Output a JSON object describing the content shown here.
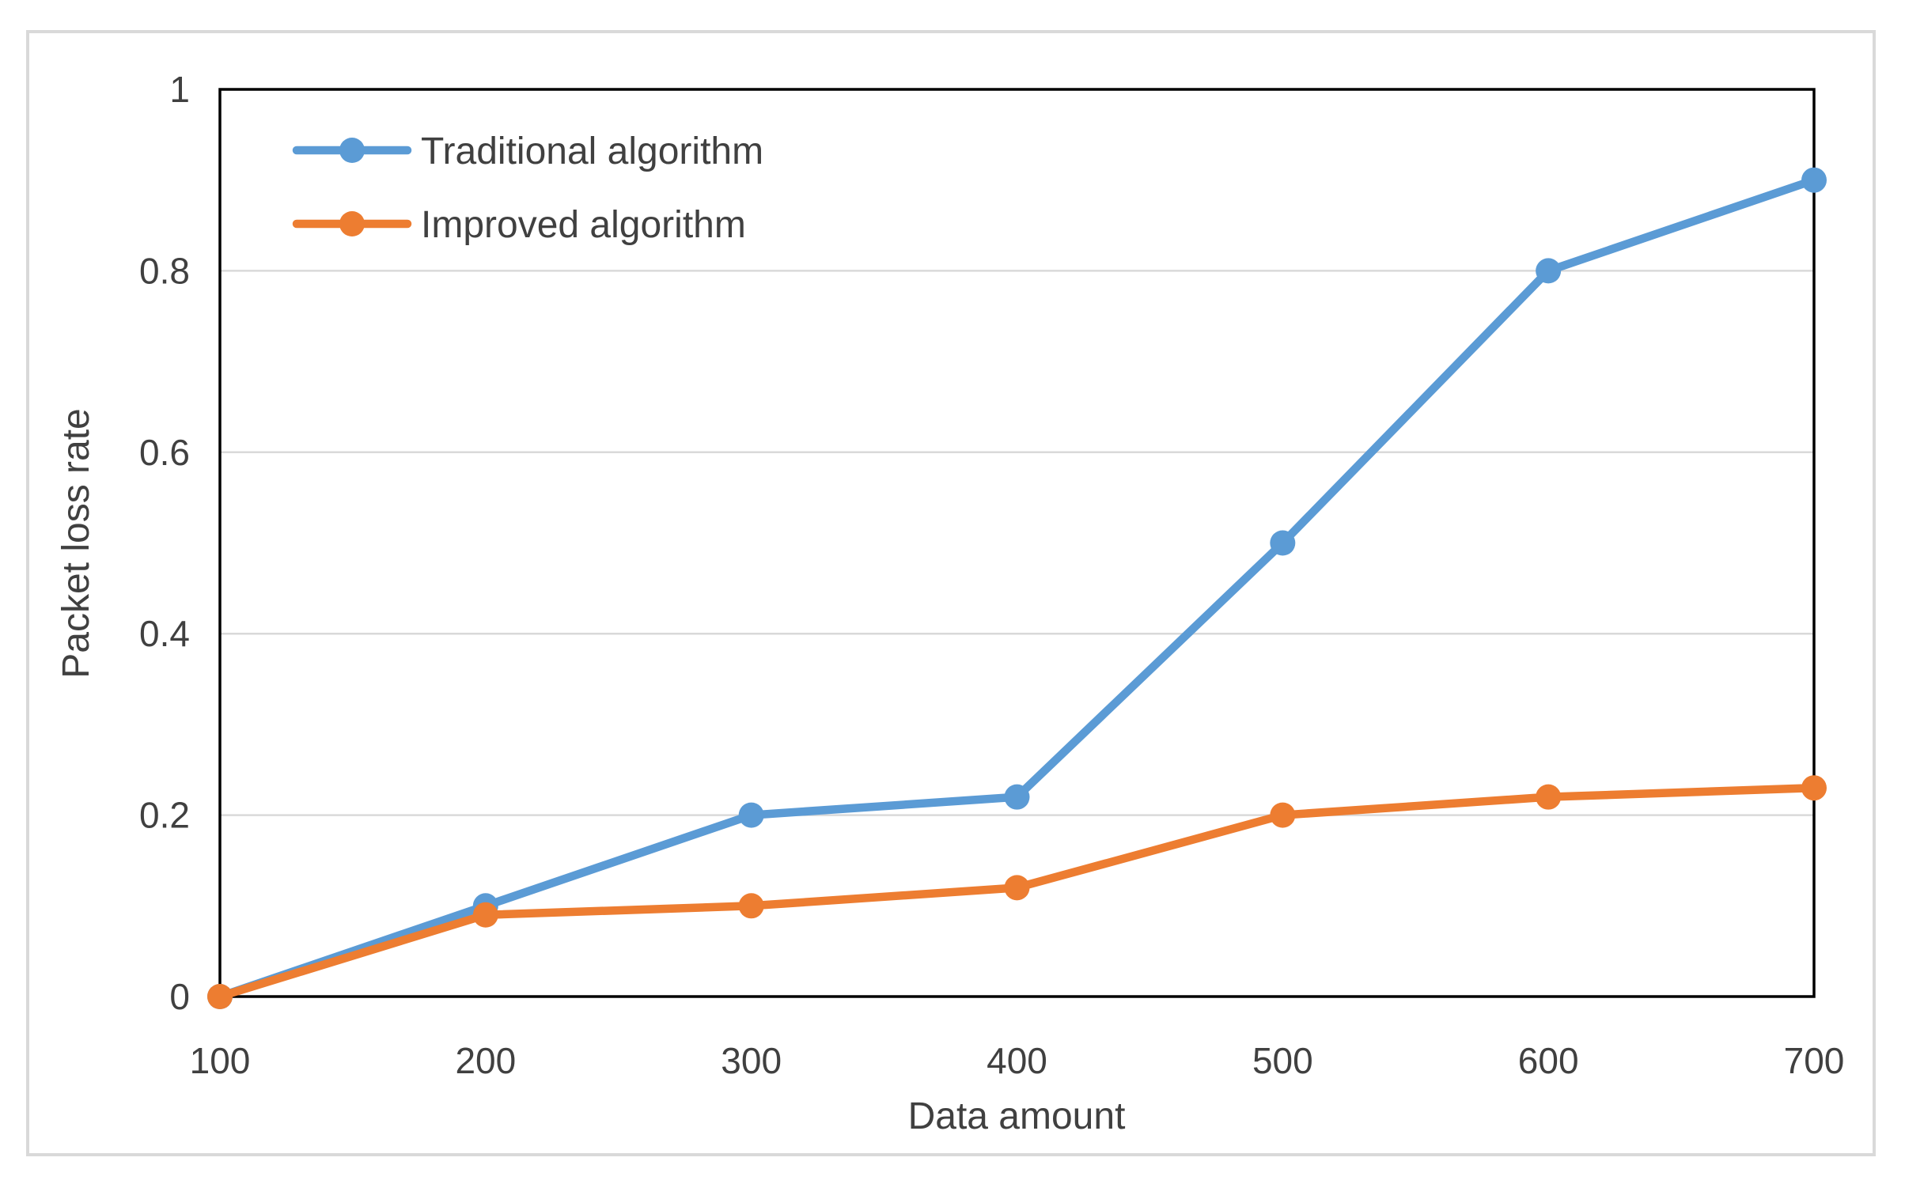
{
  "chart_data": {
    "type": "line",
    "title": "",
    "xlabel": "Data amount",
    "ylabel": "Packet loss rate",
    "xlim": [
      100,
      700
    ],
    "ylim": [
      0,
      1
    ],
    "x": [
      100,
      200,
      300,
      400,
      500,
      600,
      700
    ],
    "xtick_labels": [
      "100",
      "200",
      "300",
      "400",
      "500",
      "600",
      "700"
    ],
    "ytick_values": [
      0,
      0.2,
      0.4,
      0.6,
      0.8,
      1
    ],
    "ytick_labels": [
      "0",
      "0.2",
      "0.4",
      "0.6",
      "0.8",
      "1"
    ],
    "gridline_values": [
      0.2,
      0.4,
      0.6,
      0.8
    ],
    "grid": "horizontal",
    "legend_position": "top-left-inside",
    "series": [
      {
        "name": "Traditional algorithm",
        "color": "#5B9BD5",
        "marker": "circle",
        "values": [
          0,
          0.1,
          0.2,
          0.22,
          0.5,
          0.8,
          0.9
        ]
      },
      {
        "name": "Improved algorithm",
        "color": "#ED7D31",
        "marker": "circle",
        "values": [
          0,
          0.09,
          0.1,
          0.12,
          0.2,
          0.22,
          0.23
        ]
      }
    ],
    "colors": {
      "gridline": "#d9d9d9",
      "plot_border": "#000000",
      "tick_label": "#404040",
      "figure_border": "#d9d9d9"
    }
  }
}
